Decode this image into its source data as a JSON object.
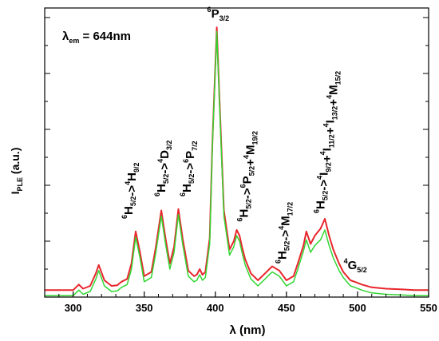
{
  "chart_data": {
    "type": "line",
    "title": "",
    "xlabel": "λ (nm)",
    "ylabel": "I_PLE (a.u.)",
    "ylabel_main": "I",
    "ylabel_sub": "PLE",
    "ylabel_unit": " (a.u.)",
    "xlim": [
      280,
      550
    ],
    "ylim": [
      0,
      100
    ],
    "x_ticks": [
      300,
      350,
      400,
      450,
      500,
      550
    ],
    "x_tick_labels": [
      "300",
      "350",
      "400",
      "450",
      "500",
      "550"
    ],
    "y_tick_labels_shown": false,
    "grid": false,
    "legend": "none",
    "em_note": {
      "main": "λ",
      "sub": "em",
      "rest": " = 644nm"
    },
    "series": [
      {
        "color": "#e8262d",
        "x": [
          280,
          300,
          304,
          307,
          312,
          316,
          318,
          322,
          327,
          331,
          334,
          338,
          341,
          344,
          347,
          350,
          355,
          358,
          362,
          365,
          368,
          371,
          374,
          377,
          381,
          385,
          387,
          389,
          391,
          393,
          396,
          398,
          401,
          403,
          406,
          410,
          413,
          415,
          417,
          419,
          421,
          425,
          430,
          435,
          440,
          445,
          450,
          455,
          458,
          462,
          464,
          467,
          470,
          474,
          477,
          480,
          483,
          487,
          490,
          495,
          498,
          503,
          510,
          520,
          530,
          540,
          550
        ],
        "y": [
          2.5,
          2.5,
          4.5,
          3.0,
          4.0,
          8.5,
          11.5,
          6.0,
          4.0,
          4.2,
          5.5,
          6.5,
          12.0,
          23.5,
          16.0,
          7.5,
          9.0,
          17.5,
          31.0,
          21.0,
          12.0,
          18.0,
          31.5,
          21.0,
          9.5,
          7.5,
          8.0,
          10.0,
          8.0,
          9.0,
          21.0,
          56.0,
          96.5,
          70.0,
          31.0,
          17.0,
          20.0,
          24.0,
          22.0,
          17.5,
          13.5,
          8.5,
          6.0,
          8.5,
          11.0,
          9.5,
          6.0,
          7.5,
          12.0,
          18.5,
          23.5,
          19.0,
          22.0,
          24.5,
          28.0,
          22.0,
          17.0,
          12.0,
          9.0,
          6.0,
          5.5,
          4.5,
          3.5,
          3.0,
          2.8,
          2.5,
          2.5
        ]
      },
      {
        "color": "#33d633",
        "x": [
          280,
          300,
          304,
          307,
          312,
          316,
          318,
          322,
          327,
          331,
          334,
          338,
          341,
          344,
          347,
          350,
          355,
          358,
          362,
          365,
          368,
          371,
          374,
          377,
          381,
          385,
          387,
          389,
          391,
          393,
          396,
          398,
          401,
          403,
          406,
          410,
          413,
          415,
          417,
          419,
          421,
          425,
          430,
          435,
          440,
          445,
          450,
          455,
          458,
          462,
          464,
          467,
          470,
          474,
          477,
          480,
          483,
          487,
          490,
          495,
          498,
          503,
          510,
          520,
          530,
          540,
          550
        ],
        "y": [
          0.5,
          0.5,
          2.5,
          1.0,
          2.0,
          6.5,
          9.5,
          4.0,
          2.0,
          2.2,
          3.5,
          4.5,
          10.0,
          21.5,
          14.0,
          5.5,
          7.0,
          15.5,
          29.0,
          19.0,
          10.0,
          16.0,
          29.5,
          19.0,
          7.5,
          5.5,
          6.0,
          8.0,
          6.0,
          7.0,
          19.0,
          55.0,
          95.0,
          68.5,
          29.0,
          15.0,
          18.0,
          22.0,
          20.0,
          15.5,
          11.5,
          6.5,
          4.0,
          6.5,
          9.0,
          7.5,
          4.0,
          5.5,
          10.0,
          16.5,
          20.5,
          16.0,
          18.5,
          20.5,
          24.0,
          18.5,
          14.0,
          9.5,
          7.0,
          4.0,
          3.5,
          2.5,
          1.5,
          1.0,
          0.8,
          0.5,
          0.5
        ]
      }
    ],
    "annotations": [
      {
        "x": 339,
        "y": 28,
        "main": "H",
        "sub": "5/2",
        "mid": "->",
        "rest": "H",
        "rest_sub": "9/2",
        "sup1": "6",
        "sup2": "4"
      },
      {
        "x": 362,
        "y": 36,
        "main": "H",
        "sub": "5/2",
        "mid": "->",
        "rest": "D",
        "rest_sub": "3/2",
        "sup1": "6",
        "sup2": "4"
      },
      {
        "x": 380,
        "y": 36,
        "main": "H",
        "sub": "5/2",
        "mid": "->",
        "rest": "P",
        "rest_sub": "7/2",
        "sup1": "6",
        "sup2": "6"
      },
      {
        "x": 401,
        "y": 100,
        "main": "P",
        "sub": "3/2",
        "sup1": "6"
      },
      {
        "x": 420,
        "y": 27,
        "main": "H",
        "sub": "5/2",
        "mid": "->",
        "rest": "P",
        "rest_sub": "5/2",
        "plus": "+",
        "rest2": "M",
        "rest2_sub": "19/2",
        "sup1": "6",
        "sup2": "6",
        "sup3": "4"
      },
      {
        "x": 447,
        "y": 12,
        "main": "H",
        "sub": "5/2",
        "mid": "->",
        "rest": "M",
        "rest_sub": "17/2",
        "sup1": "6",
        "sup2": "4"
      },
      {
        "x": 474,
        "y": 30,
        "main": "H",
        "sub": "5/2",
        "mid": "->",
        "rest": "I",
        "rest_sub": "9/2",
        "plus": "+",
        "rest2": "I",
        "rest2_sub": "11/2",
        "plus2": "+",
        "rest3": "I",
        "rest3_sub": "13/2",
        "plus3": "+",
        "rest4": "M",
        "rest4_sub": "15/2",
        "sup1": "6",
        "sup2": "4",
        "sup3": "4",
        "sup4": "4",
        "sup5": "4"
      },
      {
        "x": 497,
        "y": 10,
        "main": "G",
        "sub": "5/2",
        "sup1": "4"
      }
    ]
  },
  "colors": {
    "background": "#ffffff",
    "axis": "#000000"
  }
}
